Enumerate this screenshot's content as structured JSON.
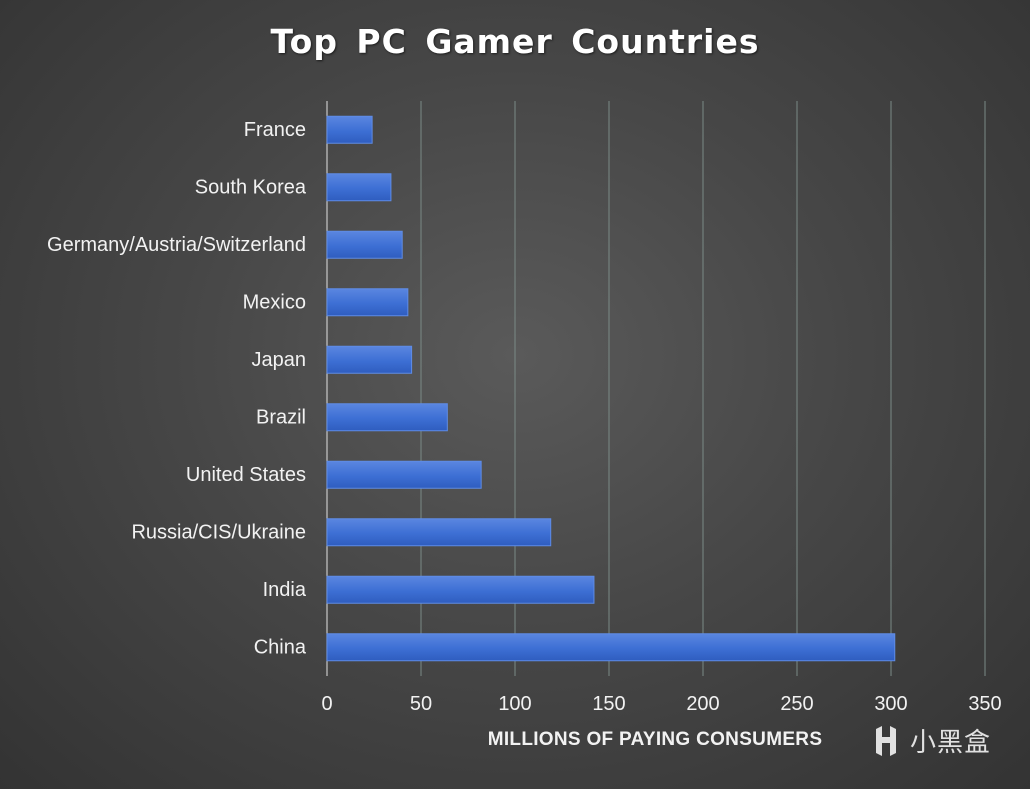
{
  "chart_data": {
    "type": "bar",
    "orientation": "horizontal",
    "title": "Top PC Gamer Countries",
    "xlabel": "MILLIONS OF PAYING CONSUMERS",
    "ylabel": "",
    "categories": [
      "France",
      "South Korea",
      "Germany/Austria/Switzerland",
      "Mexico",
      "Japan",
      "Brazil",
      "United States",
      "Russia/CIS/Ukraine",
      "India",
      "China"
    ],
    "values": [
      24,
      34,
      40,
      43,
      45,
      64,
      82,
      119,
      142,
      302
    ],
    "xlim": [
      0,
      350
    ],
    "xticks": [
      "0",
      "50",
      "100",
      "150",
      "200",
      "250",
      "300",
      "350"
    ],
    "grid": "vertical",
    "legend": "none",
    "bar_color": "#3d6fd4",
    "bar_edge_color": "#5f8ce6",
    "gridline_color": "#7a8a86",
    "background_color": "#474747",
    "text_color": "#f2f2f2"
  },
  "watermark": {
    "text": "小黑盒",
    "icon": "heybox-logo-icon"
  }
}
